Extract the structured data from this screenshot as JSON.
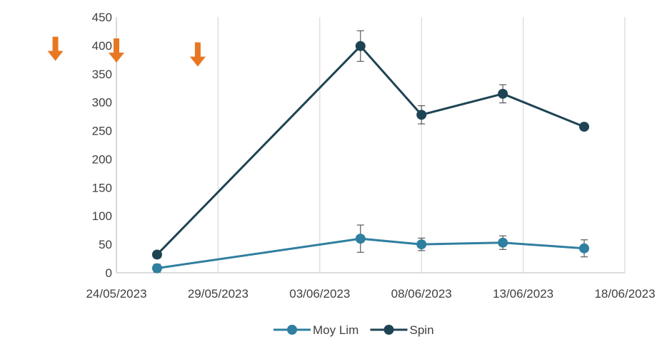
{
  "chart_data": {
    "type": "line",
    "title": "",
    "xlabel": "",
    "ylabel": "",
    "x_axis_type": "date",
    "xlim": [
      "24/05/2023",
      "18/06/2023"
    ],
    "x_ticks": [
      "24/05/2023",
      "29/05/2023",
      "03/06/2023",
      "08/06/2023",
      "13/06/2023",
      "18/06/2023"
    ],
    "ylim": [
      0,
      450
    ],
    "y_ticks": [
      "0",
      "50",
      "100",
      "150",
      "200",
      "250",
      "300",
      "350",
      "400",
      "450"
    ],
    "grid": "vertical",
    "legend": "bottom",
    "series": [
      {
        "name": "Moy Lim",
        "color": "#2f7fa0",
        "points": [
          {
            "x": "26/05/2023",
            "y": 8,
            "err": 7
          },
          {
            "x": "05/06/2023",
            "y": 60,
            "err": 24
          },
          {
            "x": "08/06/2023",
            "y": 50,
            "err": 11
          },
          {
            "x": "12/06/2023",
            "y": 53,
            "err": 12
          },
          {
            "x": "16/06/2023",
            "y": 43,
            "err": 15
          }
        ]
      },
      {
        "name": "Spin",
        "color": "#1e4454",
        "points": [
          {
            "x": "26/05/2023",
            "y": 32,
            "err": 6
          },
          {
            "x": "05/06/2023",
            "y": 399,
            "err": 27
          },
          {
            "x": "08/06/2023",
            "y": 278,
            "err": 16
          },
          {
            "x": "12/06/2023",
            "y": 315,
            "err": 16
          },
          {
            "x": "16/06/2023",
            "y": 257,
            "err": 4
          }
        ]
      }
    ],
    "annotations": [
      {
        "type": "down-arrow",
        "color": "#e87722",
        "x": "21/05/2023",
        "y": 398
      },
      {
        "type": "down-arrow",
        "color": "#e87722",
        "x": "24/05/2023",
        "y": 395
      },
      {
        "type": "down-arrow",
        "color": "#e87722",
        "x": "28/05/2023",
        "y": 388
      }
    ]
  }
}
